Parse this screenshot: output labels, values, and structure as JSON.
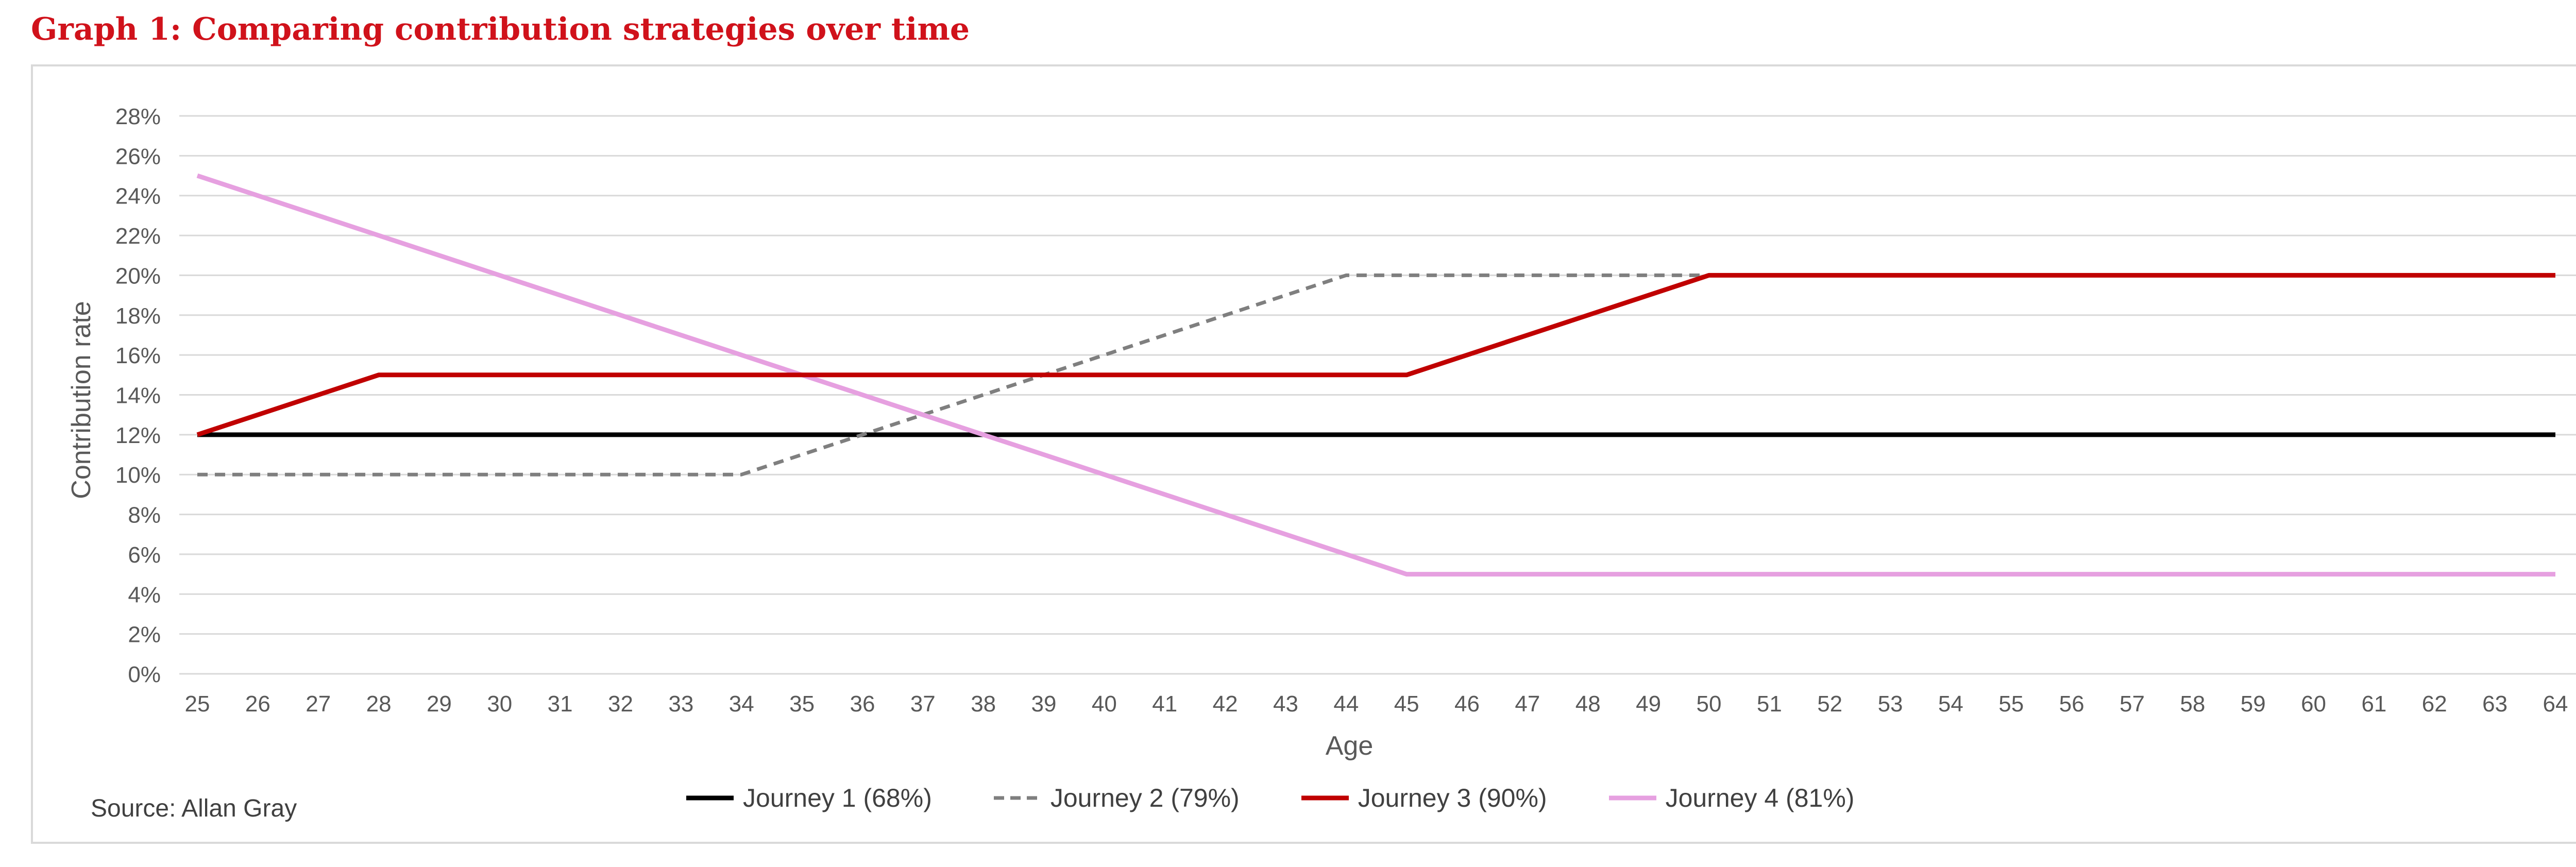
{
  "title": "Graph 1: Comparing contribution strategies over time",
  "source": "Source:  Allan Gray",
  "colors": {
    "title": "#d0121b",
    "grid": "#d9d9d9",
    "text": "#595959"
  },
  "chart_data": {
    "type": "line",
    "title": "Graph 1: Comparing contribution strategies over time",
    "xlabel": "Age",
    "ylabel": "Contribution rate",
    "ylim": [
      0,
      28
    ],
    "xlim": [
      25,
      64
    ],
    "yticks": [
      "0%",
      "2%",
      "4%",
      "6%",
      "8%",
      "10%",
      "12%",
      "14%",
      "16%",
      "18%",
      "20%",
      "22%",
      "24%",
      "26%",
      "28%"
    ],
    "x": [
      25,
      26,
      27,
      28,
      29,
      30,
      31,
      32,
      33,
      34,
      35,
      36,
      37,
      38,
      39,
      40,
      41,
      42,
      43,
      44,
      45,
      46,
      47,
      48,
      49,
      50,
      51,
      52,
      53,
      54,
      55,
      56,
      57,
      58,
      59,
      60,
      61,
      62,
      63,
      64
    ],
    "grid": true,
    "legend_position": "bottom",
    "series": [
      {
        "name": "Journey 1 (68%)",
        "color": "#000000",
        "dash": "solid",
        "points": [
          [
            25,
            12
          ],
          [
            64,
            12
          ]
        ]
      },
      {
        "name": "Journey 2 (79%)",
        "color": "#7f7f7f",
        "dash": "dashed",
        "points": [
          [
            25,
            10
          ],
          [
            34,
            10
          ],
          [
            44,
            20
          ],
          [
            50,
            20
          ]
        ]
      },
      {
        "name": "Journey 3 (90%)",
        "color": "#c00000",
        "dash": "solid",
        "points": [
          [
            25,
            12
          ],
          [
            28,
            15
          ],
          [
            45,
            15
          ],
          [
            50,
            20
          ],
          [
            64,
            20
          ]
        ]
      },
      {
        "name": "Journey 4 (81%)",
        "color": "#e6a0e0",
        "dash": "solid",
        "points": [
          [
            25,
            25
          ],
          [
            45,
            5
          ],
          [
            64,
            5
          ]
        ]
      }
    ]
  }
}
